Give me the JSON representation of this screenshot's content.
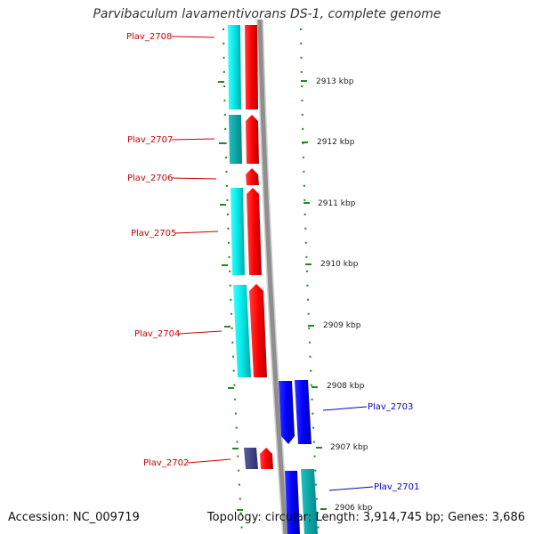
{
  "title": "Parvibaculum lavamentivorans DS-1, complete genome",
  "footer": {
    "accession": "Accession: NC_009719",
    "summary": "Topology: circular; Length: 3,914,745 bp; Genes: 3,686"
  },
  "scale": {
    "unit": "kbp",
    "ticks": [
      {
        "label": "2913 kbp"
      },
      {
        "label": "2912 kbp"
      },
      {
        "label": "2911 kbp"
      },
      {
        "label": "2910 kbp"
      },
      {
        "label": "2909 kbp"
      },
      {
        "label": "2908 kbp"
      },
      {
        "label": "2907 kbp"
      },
      {
        "label": "2906 kbp"
      }
    ]
  },
  "genes": [
    {
      "id": "Plav_2708",
      "strand": "reverse",
      "color": "#ff0000"
    },
    {
      "id": "Plav_2707",
      "strand": "reverse",
      "color": "#ff0000"
    },
    {
      "id": "Plav_2706",
      "strand": "reverse",
      "color": "#ff0000"
    },
    {
      "id": "Plav_2705",
      "strand": "reverse",
      "color": "#ff0000"
    },
    {
      "id": "Plav_2704",
      "strand": "reverse",
      "color": "#ff0000"
    },
    {
      "id": "Plav_2703",
      "strand": "forward",
      "color": "#0000ff"
    },
    {
      "id": "Plav_2702",
      "strand": "reverse",
      "color": "#ff0000"
    },
    {
      "id": "Plav_2701",
      "strand": "forward",
      "color": "#0000ff"
    }
  ],
  "colors": {
    "reverse_label": "#cc0000",
    "forward_label": "#0000cc",
    "cds_reverse": "#ff0000",
    "cds_forward": "#0000ff",
    "feature_cyan": "#00e0e0",
    "feature_teal": "#00aaaa",
    "feature_slate": "#44448a",
    "backbone": "#9a9a9a",
    "tick": "#228822"
  }
}
